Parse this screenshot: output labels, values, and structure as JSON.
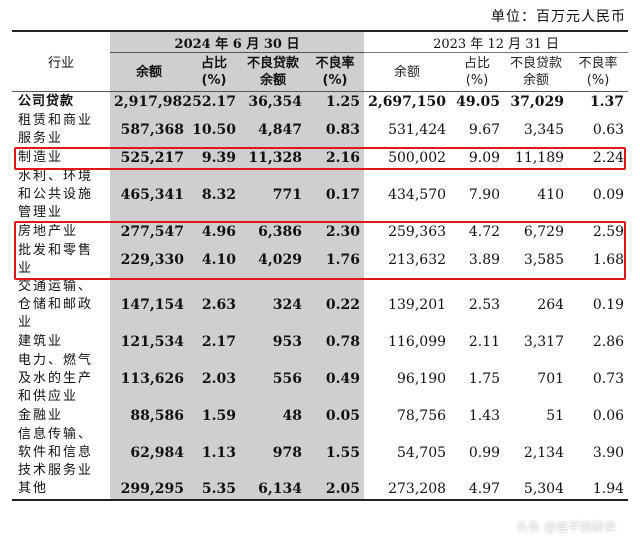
{
  "unit_label": "单位：百万元人民币",
  "columns": {
    "industry": "行业",
    "period_2024": "2024 年 6 月 30 日",
    "period_2023": "2023 年 12 月 31 日",
    "h_balance_2024": "余额",
    "h_share_2024": "占比(%)",
    "h_npl_balance_2024": "不良贷款余额",
    "h_npl_ratio_2024": "不良率(%)",
    "h_balance_2023": "余额",
    "h_share_2023": "占比(%)",
    "h_npl_balance_2023": "不良贷款余额",
    "h_npl_ratio_2023": "不良率(%)"
  },
  "rows": [
    {
      "industry": "公司贷款",
      "v": [
        "2,917,982",
        "52.17",
        "36,354",
        "1.25",
        "2,697,150",
        "49.05",
        "37,029",
        "1.37"
      ]
    },
    {
      "industry": "租赁和商业服务业",
      "v": [
        "587,368",
        "10.50",
        "4,847",
        "0.83",
        "531,424",
        "9.67",
        "3,345",
        "0.63"
      ]
    },
    {
      "industry": "制造业",
      "v": [
        "525,217",
        "9.39",
        "11,328",
        "2.16",
        "500,002",
        "9.09",
        "11,189",
        "2.24"
      ]
    },
    {
      "industry": "水利、环境和公共设施管理业",
      "v": [
        "465,341",
        "8.32",
        "771",
        "0.17",
        "434,570",
        "7.90",
        "410",
        "0.09"
      ]
    },
    {
      "industry": "房地产业",
      "v": [
        "277,547",
        "4.96",
        "6,386",
        "2.30",
        "259,363",
        "4.72",
        "6,729",
        "2.59"
      ]
    },
    {
      "industry": "批发和零售业",
      "v": [
        "229,330",
        "4.10",
        "4,029",
        "1.76",
        "213,632",
        "3.89",
        "3,585",
        "1.68"
      ]
    },
    {
      "industry": "交通运输、仓储和邮政业",
      "v": [
        "147,154",
        "2.63",
        "324",
        "0.22",
        "139,201",
        "2.53",
        "264",
        "0.19"
      ]
    },
    {
      "industry": "建筑业",
      "v": [
        "121,534",
        "2.17",
        "953",
        "0.78",
        "116,099",
        "2.11",
        "3,317",
        "2.86"
      ]
    },
    {
      "industry": "电力、燃气及水的生产和供应业",
      "v": [
        "113,626",
        "2.03",
        "556",
        "0.49",
        "96,190",
        "1.75",
        "701",
        "0.73"
      ]
    },
    {
      "industry": "金融业",
      "v": [
        "88,586",
        "1.59",
        "48",
        "0.05",
        "78,756",
        "1.43",
        "51",
        "0.06"
      ]
    },
    {
      "industry": "信息传输、软件和信息技术服务业",
      "v": [
        "62,984",
        "1.13",
        "978",
        "1.55",
        "54,705",
        "0.99",
        "2,134",
        "3.90"
      ]
    },
    {
      "industry": "其他",
      "v": [
        "299,295",
        "5.35",
        "6,134",
        "2.05",
        "273,208",
        "4.97",
        "5,304",
        "1.94"
      ]
    }
  ],
  "watermark": "头条 @岩平快研读",
  "colors": {
    "highlight": "#e01818",
    "shade": "#cfcfd1"
  }
}
